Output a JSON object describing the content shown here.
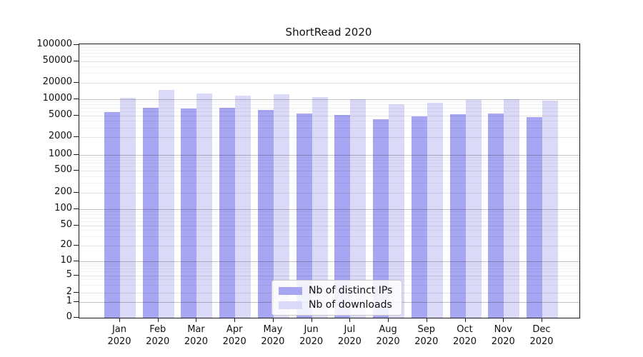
{
  "chart_data": {
    "type": "bar",
    "title": "ShortRead 2020",
    "categories": [
      "Jan",
      "Feb",
      "Mar",
      "Apr",
      "May",
      "Jun",
      "Jul",
      "Aug",
      "Sep",
      "Oct",
      "Nov",
      "Dec"
    ],
    "category_year": "2020",
    "series": [
      {
        "name": "Nb of distinct IPs",
        "color": "#a6a6f2",
        "values": [
          5800,
          7000,
          6800,
          6900,
          6400,
          5500,
          5100,
          4300,
          4800,
          5300,
          5400,
          4700
        ]
      },
      {
        "name": "Nb of downloads",
        "color": "#dadaf8",
        "values": [
          10700,
          14500,
          12800,
          11500,
          12300,
          10800,
          10100,
          8100,
          8700,
          9600,
          10000,
          9400
        ]
      }
    ],
    "yscale": "symlog",
    "yticks": [
      0,
      1,
      2,
      5,
      10,
      20,
      50,
      100,
      200,
      500,
      1000,
      2000,
      5000,
      10000,
      20000,
      50000,
      100000
    ],
    "ylim": [
      0,
      100000
    ],
    "grid": true,
    "legend": {
      "position": "inside-bottom-center"
    }
  }
}
